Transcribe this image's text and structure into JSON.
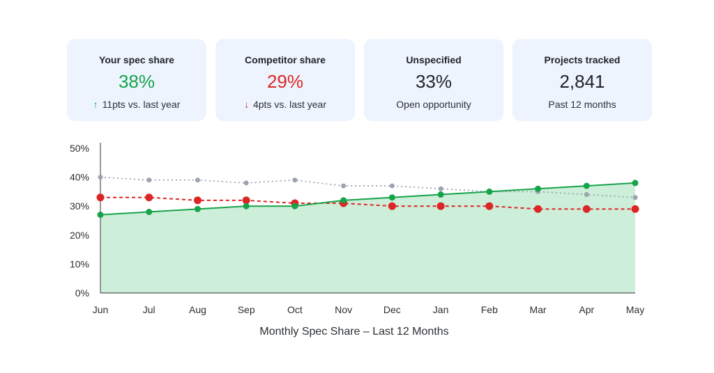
{
  "cards": [
    {
      "title": "Your spec share",
      "value": "38%",
      "value_color": "#16a34a",
      "arrow": "↑",
      "arrow_color": "#16a34a",
      "sub": "11pts vs. last year"
    },
    {
      "title": "Competitor share",
      "value": "29%",
      "value_color": "#dc2626",
      "arrow": "↓",
      "arrow_color": "#dc2626",
      "sub": "4pts vs. last year"
    },
    {
      "title": "Unspecified",
      "value": "33%",
      "value_color": "#1f2328",
      "arrow": "",
      "arrow_color": "",
      "sub": "Open opportunity"
    },
    {
      "title": "Projects tracked",
      "value": "2,841",
      "value_color": "#1f2328",
      "arrow": "",
      "arrow_color": "",
      "sub": "Past 12 months"
    }
  ],
  "chart_data": {
    "type": "line",
    "title": "Monthly Spec Share – Last 12 Months",
    "xlabel": "",
    "ylabel": "",
    "categories": [
      "Jun",
      "Jul",
      "Aug",
      "Sep",
      "Oct",
      "Nov",
      "Dec",
      "Jan",
      "Feb",
      "Mar",
      "Apr",
      "May"
    ],
    "ylim": [
      0,
      50
    ],
    "yticks": [
      "0%",
      "10%",
      "20%",
      "30%",
      "40%",
      "50%"
    ],
    "grid": false,
    "legend": "none",
    "series": [
      {
        "style": "dotted",
        "color": "#9ca3af",
        "values": [
          40,
          39,
          39,
          38,
          39,
          37,
          37,
          36,
          35,
          35,
          34,
          33
        ]
      },
      {
        "style": "dashed",
        "color": "#dc2626",
        "values": [
          33,
          33,
          32,
          32,
          31,
          31,
          30,
          30,
          30,
          29,
          29,
          29
        ]
      },
      {
        "style": "solid-area",
        "color": "#16a34a",
        "fill": "#cdeed9",
        "values": [
          27,
          28,
          29,
          30,
          30,
          32,
          33,
          34,
          35,
          36,
          37,
          38
        ]
      }
    ]
  }
}
